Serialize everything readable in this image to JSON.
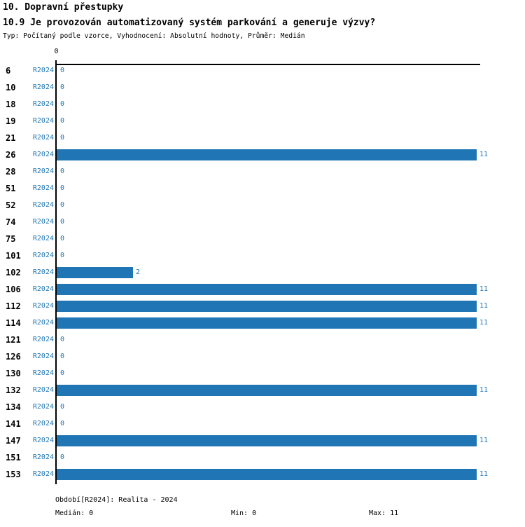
{
  "header": {
    "title1": "10. Dopravní přestupky",
    "title2": "10.9 Je provozován automatizovaný systém parkování a generuje výzvy?",
    "subtitle": "Typ: Počítaný podle vzorce, Vyhodnocení: Absolutní hodnoty, Průměr: Medián"
  },
  "chart_data": {
    "type": "bar",
    "orientation": "horizontal",
    "title": "10.9 Je provozován automatizovaný systém parkování a generuje výzvy?",
    "series_label": "R2024",
    "categories": [
      "6",
      "10",
      "18",
      "19",
      "21",
      "26",
      "28",
      "51",
      "52",
      "74",
      "75",
      "101",
      "102",
      "106",
      "112",
      "114",
      "121",
      "126",
      "130",
      "132",
      "134",
      "141",
      "147",
      "151",
      "153"
    ],
    "values": [
      0,
      0,
      0,
      0,
      0,
      11,
      0,
      0,
      0,
      0,
      0,
      0,
      2,
      11,
      11,
      11,
      0,
      0,
      0,
      11,
      0,
      0,
      11,
      0,
      11
    ],
    "xlim": [
      0,
      11
    ],
    "x_axis_tick_labels": [
      "0"
    ],
    "grid": false,
    "legend_position": "bottom",
    "bar_color": "#2076B4",
    "value_labels_shown": true
  },
  "axis": {
    "tick_zero": "0"
  },
  "footer": {
    "period": "Období[R2024]: Realita - 2024",
    "median": "Medián: 0",
    "min": "Min: 0",
    "max": "Max: 11"
  },
  "colors": {
    "accent": "#2076B4",
    "axis": "#000000",
    "background": "#FFFFFF",
    "title_text": "#000000"
  }
}
